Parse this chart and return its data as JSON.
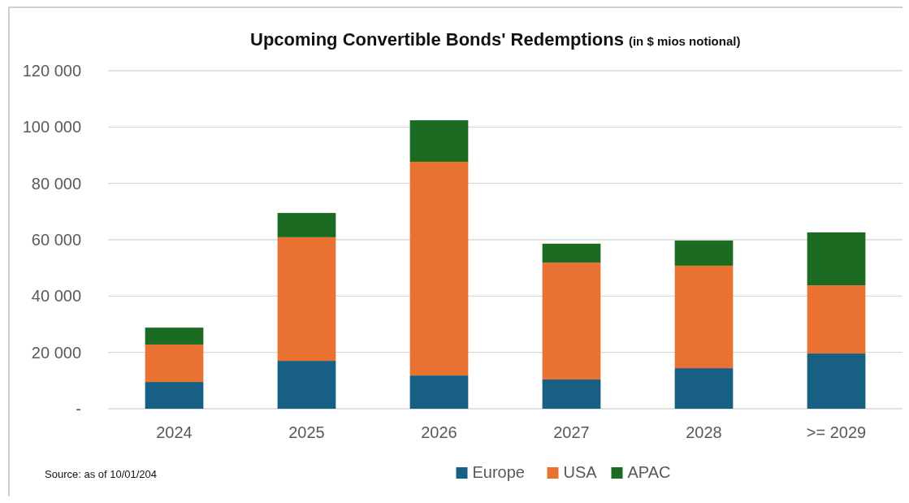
{
  "chart_data": {
    "type": "bar",
    "title": "Upcoming Convertible Bonds' Redemptions",
    "subtitle": "(in $ mios notional)",
    "categories": [
      "2024",
      "2025",
      "2026",
      "2027",
      "2028",
      ">= 2029"
    ],
    "stacked": true,
    "series": [
      {
        "name": "Europe",
        "color": "#176083",
        "values": [
          9500,
          17000,
          11800,
          10400,
          14400,
          19600
        ]
      },
      {
        "name": "USA",
        "color": "#e97132",
        "values": [
          13300,
          43900,
          75900,
          41500,
          36400,
          24200
        ]
      },
      {
        "name": "APAC",
        "color": "#1b6b22",
        "values": [
          6000,
          8600,
          14700,
          6700,
          8900,
          18800
        ]
      }
    ],
    "ylim": [
      0,
      120000
    ],
    "yticks": [
      {
        "value": 0,
        "label": "-"
      },
      {
        "value": 20000,
        "label": "20 000"
      },
      {
        "value": 40000,
        "label": "40 000"
      },
      {
        "value": 60000,
        "label": "60 000"
      },
      {
        "value": 80000,
        "label": "80 000"
      },
      {
        "value": 100000,
        "label": "100 000"
      },
      {
        "value": 120000,
        "label": "120 000"
      }
    ],
    "grid": "y",
    "legend": "bottom",
    "annotations": [
      "Source: as of 10/01/204"
    ]
  }
}
